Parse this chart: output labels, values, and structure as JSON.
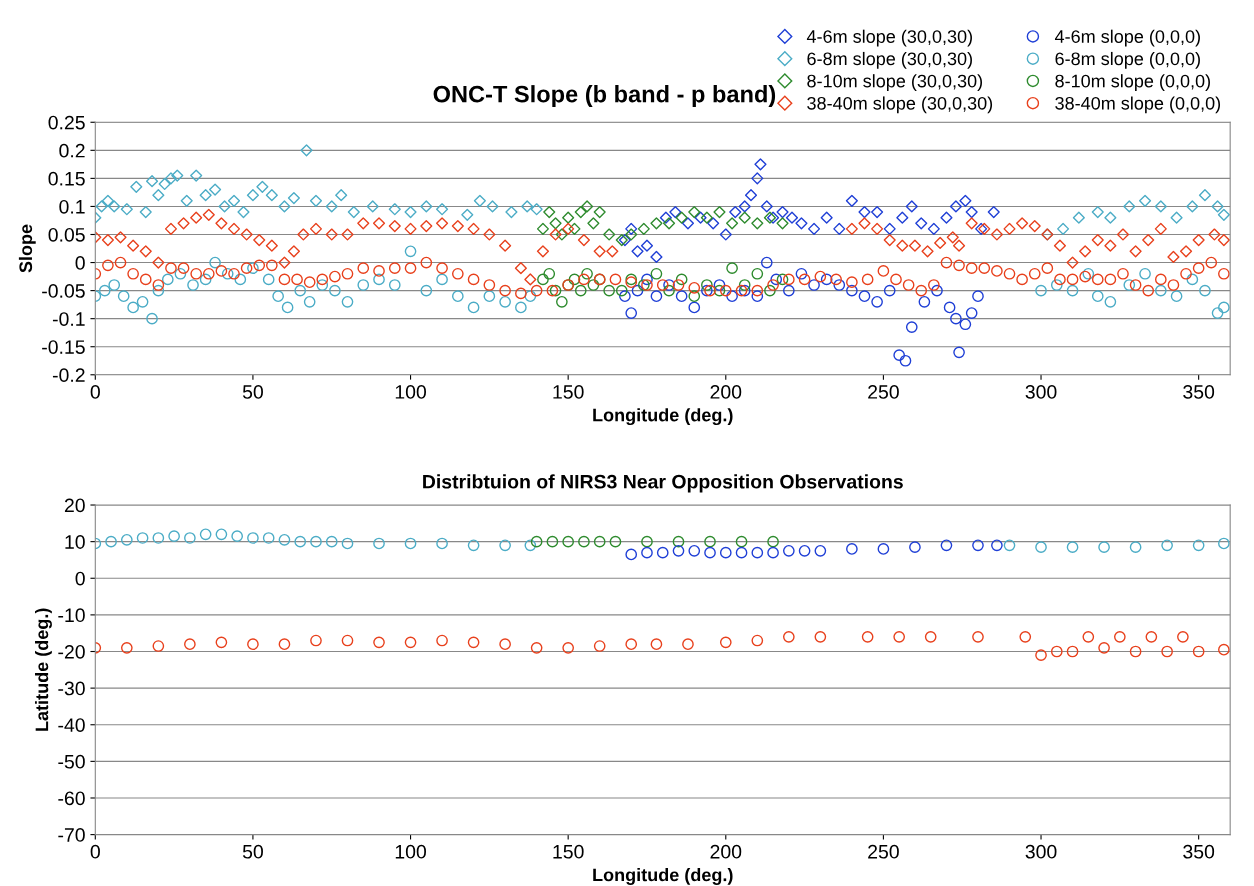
{
  "chart_data": [
    {
      "type": "scatter",
      "title": "ONC-T Slope (b band - p band)",
      "xlabel": "Longitude (deg.)",
      "ylabel": "Slope",
      "xlim": [
        0,
        360
      ],
      "xticks": [
        0,
        50,
        100,
        150,
        200,
        250,
        300,
        350
      ],
      "ylim": [
        -0.2,
        0.25
      ],
      "yticks": [
        -0.2,
        -0.15,
        -0.1,
        -0.05,
        0,
        0.05,
        0.1,
        0.15,
        0.2,
        0.25
      ],
      "grid": "y",
      "legend": "top right",
      "series": [
        {
          "name": "4-6m slope (30,0,30)",
          "color": "#1f3fd6",
          "marker": "diamond",
          "x": [
            168,
            170,
            172,
            175,
            178,
            181,
            184,
            188,
            192,
            196,
            200,
            203,
            206,
            208,
            210,
            211,
            213,
            215,
            218,
            221,
            224,
            228,
            232,
            236,
            240,
            244,
            248,
            252,
            256,
            259,
            262,
            266,
            270,
            273,
            276,
            278,
            281,
            285
          ],
          "values": [
            0.04,
            0.06,
            0.02,
            0.03,
            0.01,
            0.08,
            0.09,
            0.07,
            0.08,
            0.07,
            0.05,
            0.09,
            0.1,
            0.12,
            0.15,
            0.175,
            0.1,
            0.08,
            0.09,
            0.08,
            0.07,
            0.06,
            0.08,
            0.06,
            0.11,
            0.09,
            0.09,
            0.06,
            0.08,
            0.1,
            0.07,
            0.06,
            0.08,
            0.1,
            0.11,
            0.09,
            0.06,
            0.09
          ]
        },
        {
          "name": "6-8m slope (30,0,30)",
          "color": "#4bacc6",
          "marker": "diamond",
          "x": [
            0,
            2,
            4,
            6,
            10,
            13,
            16,
            18,
            20,
            22,
            24,
            26,
            29,
            32,
            35,
            38,
            41,
            44,
            47,
            50,
            53,
            56,
            60,
            63,
            67,
            70,
            75,
            78,
            82,
            88,
            95,
            100,
            105,
            110,
            118,
            122,
            126,
            132,
            137,
            140,
            302,
            307,
            312,
            318,
            322,
            328,
            333,
            338,
            343,
            348,
            352,
            356,
            358
          ],
          "values": [
            0.08,
            0.1,
            0.11,
            0.1,
            0.095,
            0.135,
            0.09,
            0.145,
            0.12,
            0.14,
            0.15,
            0.155,
            0.11,
            0.155,
            0.12,
            0.13,
            0.1,
            0.11,
            0.09,
            0.12,
            0.135,
            0.12,
            0.1,
            0.115,
            0.2,
            0.11,
            0.1,
            0.12,
            0.09,
            0.1,
            0.095,
            0.09,
            0.1,
            0.095,
            0.085,
            0.11,
            0.1,
            0.09,
            0.1,
            0.095,
            0.05,
            0.06,
            0.08,
            0.09,
            0.08,
            0.1,
            0.11,
            0.1,
            0.08,
            0.1,
            0.12,
            0.1,
            0.085
          ]
        },
        {
          "name": "8-10m slope (30,0,30)",
          "color": "#2e8b2e",
          "marker": "diamond",
          "x": [
            142,
            144,
            146,
            148,
            150,
            152,
            154,
            156,
            158,
            160,
            163,
            167,
            170,
            174,
            178,
            182,
            186,
            190,
            194,
            198,
            202,
            206,
            210,
            214,
            218
          ],
          "values": [
            0.06,
            0.09,
            0.07,
            0.05,
            0.08,
            0.06,
            0.09,
            0.1,
            0.07,
            0.09,
            0.05,
            0.04,
            0.05,
            0.06,
            0.07,
            0.07,
            0.08,
            0.09,
            0.08,
            0.09,
            0.07,
            0.08,
            0.07,
            0.08,
            0.07
          ]
        },
        {
          "name": "38-40m slope (30,0,30)",
          "color": "#e8401c",
          "marker": "diamond",
          "x": [
            0,
            4,
            8,
            12,
            16,
            20,
            24,
            28,
            32,
            36,
            40,
            44,
            48,
            52,
            56,
            60,
            63,
            66,
            70,
            75,
            80,
            85,
            90,
            95,
            100,
            105,
            110,
            115,
            120,
            125,
            130,
            135,
            138,
            142,
            146,
            150,
            155,
            160,
            164,
            240,
            244,
            248,
            252,
            256,
            260,
            264,
            268,
            272,
            274,
            278,
            282,
            286,
            290,
            294,
            298,
            302,
            306,
            310,
            314,
            318,
            322,
            326,
            330,
            334,
            338,
            342,
            346,
            350,
            355,
            358
          ],
          "values": [
            0.045,
            0.04,
            0.045,
            0.03,
            0.02,
            0.0,
            0.06,
            0.07,
            0.08,
            0.085,
            0.07,
            0.06,
            0.05,
            0.04,
            0.03,
            0.0,
            0.02,
            0.05,
            0.06,
            0.05,
            0.05,
            0.07,
            0.07,
            0.065,
            0.06,
            0.065,
            0.07,
            0.065,
            0.06,
            0.05,
            0.03,
            -0.01,
            -0.03,
            0.02,
            0.05,
            0.06,
            0.04,
            0.02,
            0.02,
            0.06,
            0.07,
            0.06,
            0.04,
            0.03,
            0.03,
            0.02,
            0.035,
            0.045,
            0.03,
            0.07,
            0.06,
            0.05,
            0.06,
            0.07,
            0.065,
            0.05,
            0.03,
            0.0,
            0.02,
            0.04,
            0.03,
            0.05,
            0.02,
            0.04,
            0.06,
            0.01,
            0.02,
            0.04,
            0.05,
            0.04
          ]
        },
        {
          "name": "4-6m slope (0,0,0)",
          "color": "#1f3fd6",
          "marker": "circle",
          "x": [
            168,
            170,
            172,
            175,
            178,
            182,
            186,
            190,
            194,
            198,
            202,
            206,
            210,
            213,
            216,
            220,
            224,
            228,
            232,
            236,
            240,
            244,
            248,
            252,
            255,
            257,
            259,
            263,
            267,
            271,
            273,
            274,
            276,
            278,
            280
          ],
          "values": [
            -0.06,
            -0.09,
            -0.05,
            -0.03,
            -0.06,
            -0.04,
            -0.06,
            -0.08,
            -0.05,
            -0.04,
            -0.06,
            -0.05,
            -0.06,
            0.0,
            -0.03,
            -0.05,
            -0.02,
            -0.04,
            -0.03,
            -0.04,
            -0.05,
            -0.06,
            -0.07,
            -0.05,
            -0.165,
            -0.175,
            -0.115,
            -0.07,
            -0.05,
            -0.08,
            -0.1,
            -0.16,
            -0.11,
            -0.09,
            -0.06
          ]
        },
        {
          "name": "6-8m slope (0,0,0)",
          "color": "#4bacc6",
          "marker": "circle",
          "x": [
            0,
            3,
            6,
            9,
            12,
            15,
            18,
            20,
            23,
            27,
            31,
            35,
            38,
            42,
            46,
            50,
            55,
            58,
            61,
            65,
            68,
            72,
            76,
            80,
            85,
            90,
            95,
            100,
            105,
            110,
            115,
            120,
            125,
            130,
            135,
            138,
            300,
            305,
            310,
            315,
            318,
            322,
            328,
            333,
            338,
            343,
            348,
            352,
            356,
            358
          ],
          "values": [
            -0.06,
            -0.05,
            -0.04,
            -0.06,
            -0.08,
            -0.07,
            -0.1,
            -0.05,
            -0.03,
            -0.02,
            -0.04,
            -0.03,
            0.0,
            -0.02,
            -0.03,
            -0.01,
            -0.03,
            -0.06,
            -0.08,
            -0.05,
            -0.07,
            -0.04,
            -0.05,
            -0.07,
            -0.04,
            -0.03,
            -0.04,
            0.02,
            -0.05,
            -0.03,
            -0.06,
            -0.08,
            -0.06,
            -0.07,
            -0.08,
            -0.06,
            -0.05,
            -0.04,
            -0.05,
            -0.02,
            -0.06,
            -0.07,
            -0.04,
            -0.02,
            -0.05,
            -0.06,
            -0.03,
            -0.05,
            -0.09,
            -0.08
          ]
        },
        {
          "name": "8-10m slope (0,0,0)",
          "color": "#2e8b2e",
          "marker": "circle",
          "x": [
            142,
            144,
            146,
            148,
            150,
            152,
            154,
            156,
            158,
            160,
            163,
            167,
            170,
            174,
            178,
            182,
            186,
            190,
            194,
            198,
            202,
            206,
            210,
            214,
            218
          ],
          "values": [
            -0.03,
            -0.02,
            -0.05,
            -0.07,
            -0.04,
            -0.03,
            -0.05,
            -0.02,
            -0.04,
            -0.03,
            -0.05,
            -0.05,
            -0.03,
            -0.04,
            -0.02,
            -0.05,
            -0.03,
            -0.06,
            -0.04,
            -0.05,
            -0.01,
            -0.04,
            -0.02,
            -0.05,
            -0.03
          ]
        },
        {
          "name": "38-40m slope (0,0,0)",
          "color": "#e8401c",
          "marker": "circle",
          "x": [
            0,
            4,
            8,
            12,
            16,
            20,
            24,
            28,
            32,
            36,
            40,
            44,
            48,
            52,
            56,
            60,
            64,
            68,
            72,
            76,
            80,
            85,
            90,
            95,
            100,
            105,
            110,
            115,
            120,
            125,
            130,
            135,
            140,
            145,
            150,
            155,
            160,
            165,
            170,
            175,
            180,
            185,
            190,
            195,
            200,
            205,
            210,
            215,
            220,
            225,
            230,
            235,
            240,
            245,
            250,
            254,
            258,
            262,
            266,
            270,
            274,
            278,
            282,
            286,
            290,
            294,
            298,
            302,
            306,
            310,
            314,
            318,
            322,
            326,
            330,
            334,
            338,
            342,
            346,
            350,
            354,
            358
          ],
          "values": [
            -0.02,
            -0.005,
            0.0,
            -0.02,
            -0.03,
            -0.04,
            -0.01,
            -0.01,
            -0.02,
            -0.02,
            -0.015,
            -0.02,
            -0.01,
            -0.005,
            -0.005,
            -0.03,
            -0.03,
            -0.035,
            -0.03,
            -0.025,
            -0.02,
            -0.01,
            -0.015,
            -0.01,
            -0.01,
            0.0,
            -0.01,
            -0.02,
            -0.03,
            -0.04,
            -0.05,
            -0.055,
            -0.05,
            -0.05,
            -0.04,
            -0.03,
            -0.03,
            -0.03,
            -0.035,
            -0.04,
            -0.04,
            -0.04,
            -0.045,
            -0.05,
            -0.05,
            -0.05,
            -0.05,
            -0.04,
            -0.03,
            -0.03,
            -0.025,
            -0.03,
            -0.035,
            -0.03,
            -0.015,
            -0.03,
            -0.04,
            -0.05,
            -0.04,
            0.0,
            -0.005,
            -0.01,
            -0.01,
            -0.015,
            -0.02,
            -0.03,
            -0.02,
            -0.01,
            -0.03,
            -0.03,
            -0.025,
            -0.03,
            -0.03,
            -0.02,
            -0.04,
            -0.05,
            -0.03,
            -0.04,
            -0.02,
            -0.01,
            0.0,
            -0.02
          ]
        }
      ]
    },
    {
      "type": "scatter",
      "title": "Distribtuion of NIRS3 Near Opposition Observations",
      "xlabel": "Longitude (deg.)",
      "ylabel": "Latitude (deg.)",
      "xlim": [
        0,
        360
      ],
      "xticks": [
        0,
        50,
        100,
        150,
        200,
        250,
        300,
        350
      ],
      "ylim": [
        -70,
        20
      ],
      "yticks": [
        -70,
        -60,
        -50,
        -40,
        -30,
        -20,
        -10,
        0,
        10,
        20
      ],
      "grid": "y",
      "legend": false,
      "series": [
        {
          "color": "#4bacc6",
          "marker": "circle",
          "x": [
            0,
            5,
            10,
            15,
            20,
            25,
            30,
            35,
            40,
            45,
            50,
            55,
            60,
            65,
            70,
            75,
            80,
            90,
            100,
            110,
            120,
            130,
            138,
            290,
            300,
            310,
            320,
            330,
            340,
            350,
            358
          ],
          "values": [
            9.5,
            10,
            10.5,
            11,
            11,
            11.5,
            11,
            12,
            12,
            11.5,
            11,
            11,
            10.5,
            10,
            10,
            10,
            9.5,
            9.5,
            9.5,
            9.5,
            9,
            9,
            9,
            9,
            8.5,
            8.5,
            8.5,
            8.5,
            9,
            9,
            9.5
          ]
        },
        {
          "color": "#2e8b2e",
          "marker": "circle",
          "x": [
            140,
            145,
            150,
            155,
            160,
            165,
            175,
            185,
            195,
            205,
            215
          ],
          "values": [
            10,
            10,
            10,
            10,
            10,
            10,
            10,
            10,
            10,
            10,
            10
          ]
        },
        {
          "color": "#1f3fd6",
          "marker": "circle",
          "x": [
            170,
            175,
            180,
            185,
            190,
            195,
            200,
            205,
            210,
            215,
            220,
            225,
            230,
            240,
            250,
            260,
            270,
            280,
            286
          ],
          "values": [
            6.5,
            7,
            7,
            7.5,
            7.5,
            7,
            7,
            7,
            7,
            7,
            7.5,
            7.5,
            7.5,
            8,
            8,
            8.5,
            9,
            9,
            9
          ]
        },
        {
          "color": "#e8401c",
          "marker": "circle",
          "x": [
            0,
            10,
            20,
            30,
            40,
            50,
            60,
            70,
            80,
            90,
            100,
            110,
            120,
            130,
            140,
            150,
            160,
            170,
            178,
            188,
            200,
            210,
            220,
            230,
            245,
            255,
            265,
            280,
            295,
            300,
            305,
            310,
            315,
            320,
            325,
            330,
            335,
            340,
            345,
            350,
            358
          ],
          "values": [
            -19,
            -19,
            -18.5,
            -18,
            -17.5,
            -18,
            -18,
            -17,
            -17,
            -17.5,
            -17.5,
            -17,
            -17.5,
            -18,
            -19,
            -19,
            -18.5,
            -18,
            -18,
            -18,
            -17.5,
            -17,
            -16,
            -16,
            -16,
            -16,
            -16,
            -16,
            -16,
            -21,
            -20,
            -20,
            -16,
            -19,
            -16,
            -20,
            -16,
            -20,
            -16,
            -20,
            -19.5
          ]
        }
      ]
    }
  ]
}
